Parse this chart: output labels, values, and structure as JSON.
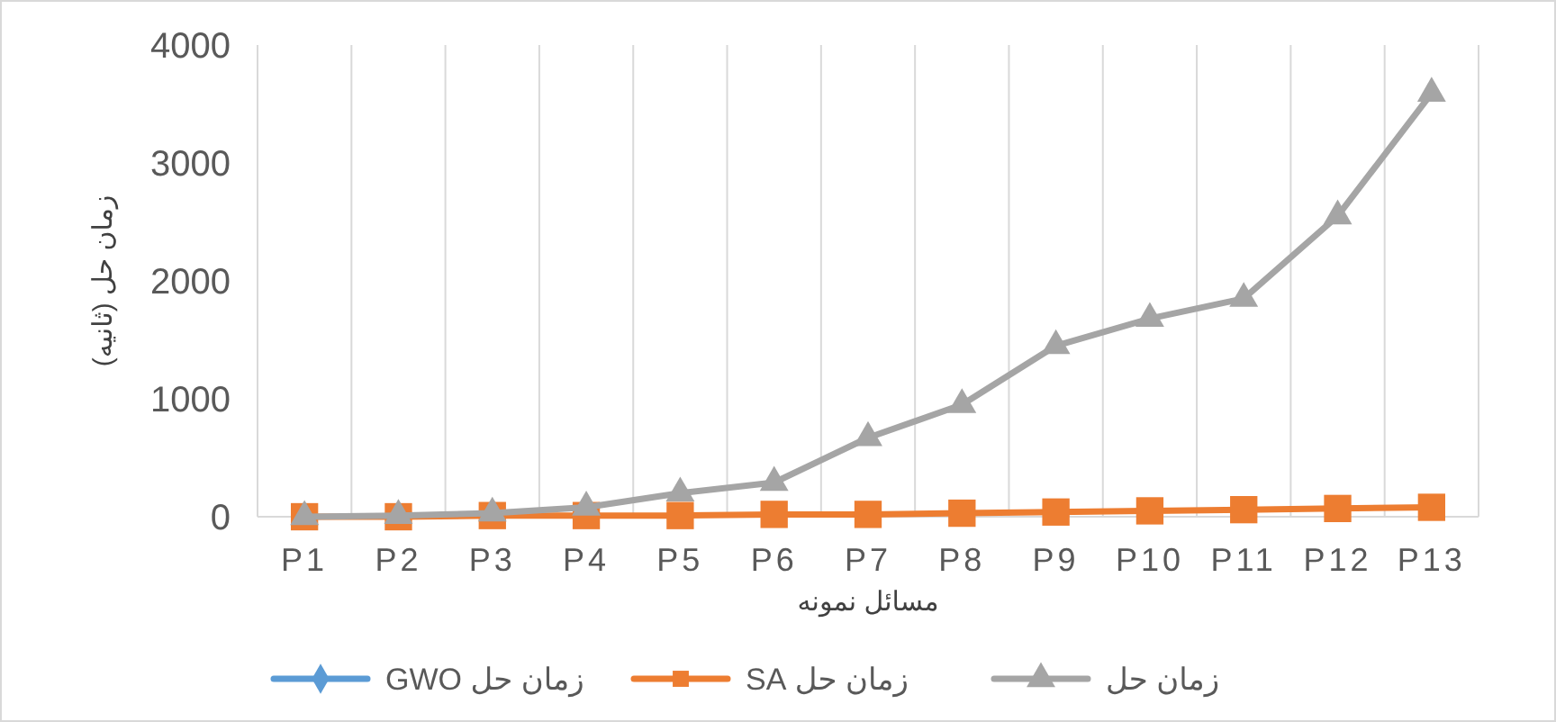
{
  "chart_data": {
    "type": "line",
    "xlabel": "مسائل نمونه",
    "ylabel": "زمان حل (ثانیه)",
    "categories": [
      "P1",
      "P2",
      "P3",
      "P4",
      "P5",
      "P6",
      "P7",
      "P8",
      "P9",
      "P10",
      "P11",
      "P12",
      "P13"
    ],
    "series": [
      {
        "name": "زمان حل GWO",
        "color": "#5b9bd5",
        "marker": "diamond",
        "values": [
          null,
          null,
          null,
          null,
          null,
          null,
          null,
          null,
          null,
          null,
          null,
          null,
          null
        ]
      },
      {
        "name": "زمان حل SA",
        "color": "#ed7d31",
        "marker": "square",
        "values": [
          0,
          0,
          10,
          10,
          10,
          20,
          20,
          30,
          40,
          50,
          60,
          70,
          80
        ]
      },
      {
        "name": "زمان حل",
        "color": "#a5a5a5",
        "marker": "triangle",
        "values": [
          0,
          10,
          30,
          80,
          200,
          290,
          670,
          950,
          1450,
          1680,
          1850,
          2550,
          3590
        ]
      }
    ],
    "ylim": [
      0,
      4000
    ],
    "yticks": [
      0,
      1000,
      2000,
      3000,
      4000
    ],
    "grid": "x",
    "legend": "bottom",
    "line_style": "solid"
  }
}
